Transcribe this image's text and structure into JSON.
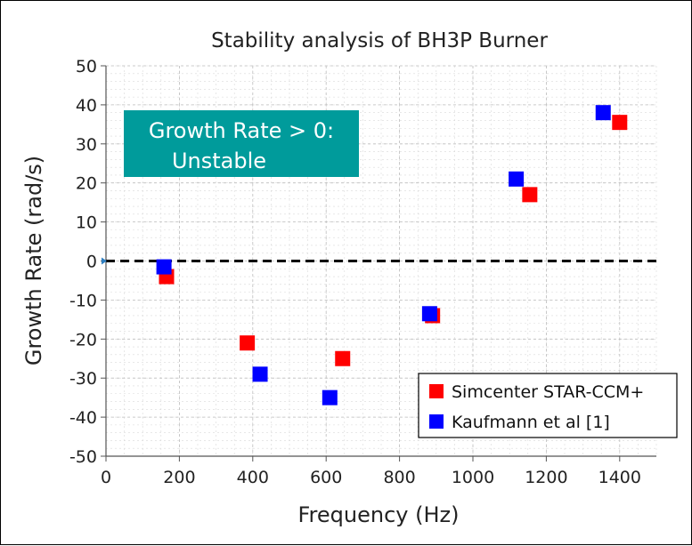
{
  "chart_data": {
    "type": "scatter",
    "title": "Stability analysis of BH3P Burner",
    "xlabel": "Frequency (Hz)",
    "ylabel": "Growth Rate (rad/s)",
    "xlim": [
      0,
      1500
    ],
    "ylim": [
      -50,
      50
    ],
    "xticks": [
      0,
      200,
      400,
      600,
      800,
      1000,
      1200,
      1400
    ],
    "yticks": [
      50,
      40,
      30,
      20,
      10,
      0,
      -10,
      -20,
      -30,
      -40,
      -50
    ],
    "xtick_labels": [
      "0",
      "200",
      "400",
      "600",
      "800",
      "1000",
      "1200",
      "1400"
    ],
    "ytick_labels": [
      "50",
      "40",
      "30",
      "20",
      "10",
      "0",
      "-10",
      "-20",
      "-30",
      "-40",
      "-50"
    ],
    "grid": true,
    "reference_line": {
      "y": 0,
      "style": "dashed",
      "color": "#000000"
    },
    "legend_position": "bottom-right",
    "series": [
      {
        "name": "Simcenter STAR-CCM+",
        "color": "#ff0000",
        "marker": "square",
        "points": [
          {
            "x": 165,
            "y": -4
          },
          {
            "x": 385,
            "y": -21
          },
          {
            "x": 645,
            "y": -25
          },
          {
            "x": 890,
            "y": -14
          },
          {
            "x": 1155,
            "y": 17
          },
          {
            "x": 1400,
            "y": 35.5
          }
        ]
      },
      {
        "name": "Kaufmann et al [1]",
        "color": "#0000ff",
        "marker": "square",
        "points": [
          {
            "x": 158,
            "y": -1.5
          },
          {
            "x": 420,
            "y": -29
          },
          {
            "x": 610,
            "y": -35
          },
          {
            "x": 882,
            "y": -13.5
          },
          {
            "x": 1118,
            "y": 21
          },
          {
            "x": 1355,
            "y": 38
          }
        ]
      }
    ],
    "annotation": {
      "line1": "Growth Rate > 0:",
      "line2": "Unstable",
      "background": "#009b9b",
      "text_color": "#ffffff"
    }
  }
}
